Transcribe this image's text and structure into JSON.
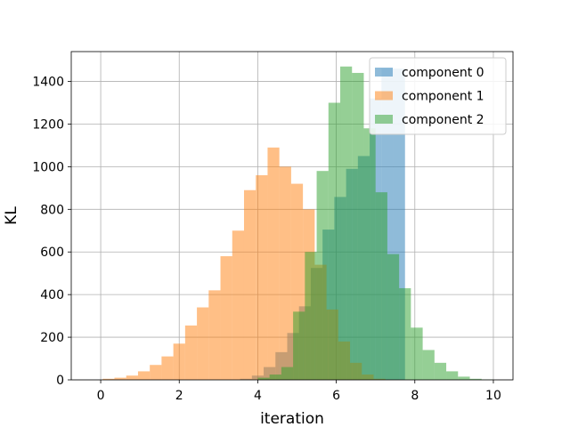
{
  "chart_data": {
    "type": "bar",
    "xlabel": "iteration",
    "ylabel": "KL",
    "xlim": [
      -0.75,
      10.5
    ],
    "ylim": [
      0,
      1540
    ],
    "xticks": [
      0,
      2,
      4,
      6,
      8,
      10
    ],
    "yticks": [
      0,
      200,
      400,
      600,
      800,
      1000,
      1200,
      1400
    ],
    "grid": true,
    "legend_position": "top-right",
    "series": [
      {
        "name": "component 0",
        "color": "#1f77b4",
        "bins": [
          {
            "x0": 3.55,
            "x1": 3.85,
            "value": 5
          },
          {
            "x0": 3.85,
            "x1": 4.15,
            "value": 20
          },
          {
            "x0": 4.15,
            "x1": 4.45,
            "value": 60
          },
          {
            "x0": 4.45,
            "x1": 4.75,
            "value": 130
          },
          {
            "x0": 4.75,
            "x1": 5.05,
            "value": 220
          },
          {
            "x0": 5.05,
            "x1": 5.35,
            "value": 345
          },
          {
            "x0": 5.35,
            "x1": 5.65,
            "value": 525
          },
          {
            "x0": 5.65,
            "x1": 5.95,
            "value": 705
          },
          {
            "x0": 5.95,
            "x1": 6.25,
            "value": 858
          },
          {
            "x0": 6.25,
            "x1": 6.55,
            "value": 990
          },
          {
            "x0": 6.55,
            "x1": 6.85,
            "value": 1050
          },
          {
            "x0": 6.85,
            "x1": 7.15,
            "value": 1320
          },
          {
            "x0": 7.15,
            "x1": 7.45,
            "value": 1460
          },
          {
            "x0": 7.45,
            "x1": 7.75,
            "value": 1460
          }
        ]
      },
      {
        "name": "component 1",
        "color": "#ff7f0e",
        "bins": [
          {
            "x0": 0.05,
            "x1": 0.35,
            "value": 5
          },
          {
            "x0": 0.35,
            "x1": 0.65,
            "value": 10
          },
          {
            "x0": 0.65,
            "x1": 0.95,
            "value": 20
          },
          {
            "x0": 0.95,
            "x1": 1.25,
            "value": 40
          },
          {
            "x0": 1.25,
            "x1": 1.55,
            "value": 70
          },
          {
            "x0": 1.55,
            "x1": 1.85,
            "value": 110
          },
          {
            "x0": 1.85,
            "x1": 2.15,
            "value": 170
          },
          {
            "x0": 2.15,
            "x1": 2.45,
            "value": 255
          },
          {
            "x0": 2.45,
            "x1": 2.75,
            "value": 340
          },
          {
            "x0": 2.75,
            "x1": 3.05,
            "value": 420
          },
          {
            "x0": 3.05,
            "x1": 3.35,
            "value": 580
          },
          {
            "x0": 3.35,
            "x1": 3.65,
            "value": 700
          },
          {
            "x0": 3.65,
            "x1": 3.95,
            "value": 890
          },
          {
            "x0": 3.95,
            "x1": 4.25,
            "value": 960
          },
          {
            "x0": 4.25,
            "x1": 4.55,
            "value": 1090
          },
          {
            "x0": 4.55,
            "x1": 4.85,
            "value": 1000
          },
          {
            "x0": 4.85,
            "x1": 5.15,
            "value": 920
          },
          {
            "x0": 5.15,
            "x1": 5.45,
            "value": 800
          },
          {
            "x0": 5.45,
            "x1": 5.75,
            "value": 540
          },
          {
            "x0": 5.75,
            "x1": 6.05,
            "value": 330
          },
          {
            "x0": 6.05,
            "x1": 6.35,
            "value": 180
          },
          {
            "x0": 6.35,
            "x1": 6.65,
            "value": 80
          },
          {
            "x0": 6.65,
            "x1": 6.95,
            "value": 25
          },
          {
            "x0": 6.95,
            "x1": 7.25,
            "value": 5
          }
        ]
      },
      {
        "name": "component 2",
        "color": "#2ca02c",
        "bins": [
          {
            "x0": 4.0,
            "x1": 4.3,
            "value": 10
          },
          {
            "x0": 4.3,
            "x1": 4.6,
            "value": 25
          },
          {
            "x0": 4.6,
            "x1": 4.9,
            "value": 60
          },
          {
            "x0": 4.9,
            "x1": 5.2,
            "value": 320
          },
          {
            "x0": 5.2,
            "x1": 5.5,
            "value": 600
          },
          {
            "x0": 5.5,
            "x1": 5.8,
            "value": 980
          },
          {
            "x0": 5.8,
            "x1": 6.1,
            "value": 1300
          },
          {
            "x0": 6.1,
            "x1": 6.4,
            "value": 1470
          },
          {
            "x0": 6.4,
            "x1": 6.7,
            "value": 1440
          },
          {
            "x0": 6.7,
            "x1": 7.0,
            "value": 1180
          },
          {
            "x0": 7.0,
            "x1": 7.3,
            "value": 880
          },
          {
            "x0": 7.3,
            "x1": 7.6,
            "value": 590
          },
          {
            "x0": 7.6,
            "x1": 7.9,
            "value": 430
          },
          {
            "x0": 7.9,
            "x1": 8.2,
            "value": 245
          },
          {
            "x0": 8.2,
            "x1": 8.5,
            "value": 140
          },
          {
            "x0": 8.5,
            "x1": 8.8,
            "value": 80
          },
          {
            "x0": 8.8,
            "x1": 9.1,
            "value": 40
          },
          {
            "x0": 9.1,
            "x1": 9.4,
            "value": 15
          },
          {
            "x0": 9.4,
            "x1": 9.7,
            "value": 5
          },
          {
            "x0": 9.7,
            "x1": 10.0,
            "value": 2
          }
        ]
      }
    ]
  }
}
